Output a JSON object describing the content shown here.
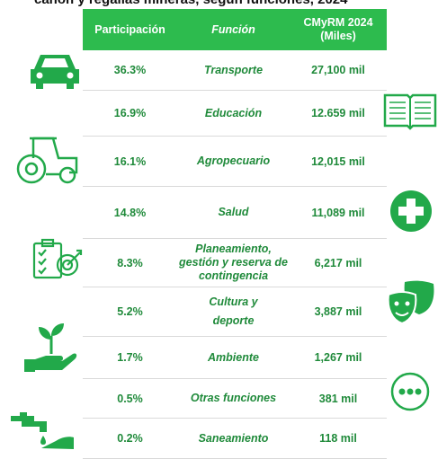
{
  "header": {
    "title": "cañón y regalías mineras, según funciones, 2024"
  },
  "table": {
    "columns": [
      [
        "Participación"
      ],
      [
        "Función"
      ],
      [
        "CMyRM 2024",
        "(Miles)"
      ]
    ],
    "rows": [
      [
        "36.3%",
        [
          "Transporte"
        ],
        "27,100 mil"
      ],
      [
        "16.9%",
        [
          "Educación"
        ],
        "12.659 mil"
      ],
      [
        "16.1%",
        [
          "Agropecuario"
        ],
        "12,015 mil"
      ],
      [
        "14.8%",
        [
          "Salud"
        ],
        "11,089 mil"
      ],
      [
        "8.3%",
        [
          "Planeamiento,",
          "gestión y reserva de",
          "contingencia"
        ],
        "6,217 mil"
      ],
      [
        "5.2%",
        [
          "Cultura y",
          "deporte"
        ],
        "3,887 mil"
      ],
      [
        "1.7%",
        [
          "Ambiente"
        ],
        "1,267 mil"
      ],
      [
        "0.5%",
        [
          "Otras funciones"
        ],
        "381 mil"
      ],
      [
        "0.2%",
        [
          "Saneamiento"
        ],
        "118 mil"
      ]
    ]
  }
}
